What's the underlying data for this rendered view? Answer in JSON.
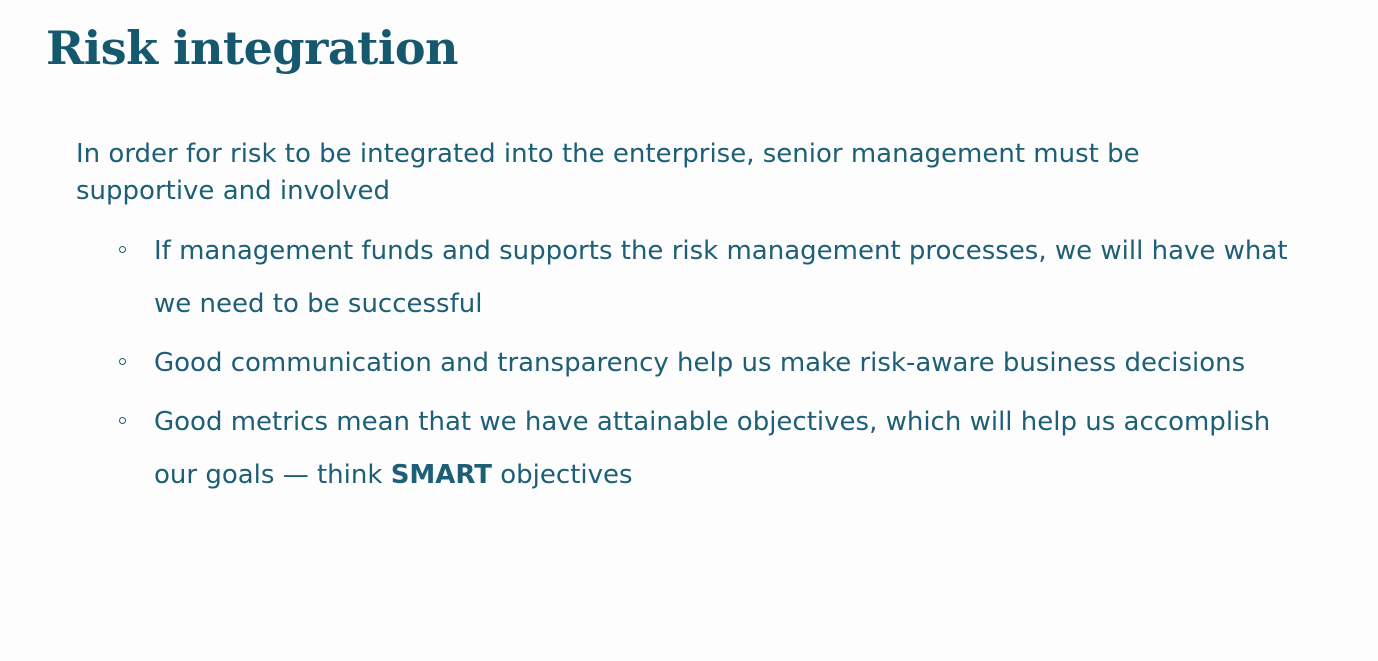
{
  "colors": {
    "title": "#16586e",
    "text": "#1c5f77",
    "background": "#fdfdfd"
  },
  "slide": {
    "title": "Risk integration",
    "intro": "In order for risk to be integrated into the enterprise, senior management must be supportive and involved",
    "bullets": [
      {
        "text": "If management funds and supports the risk management processes, we will have what we need to be successful"
      },
      {
        "text": "Good communication and transparency help us make risk-aware business decisions"
      },
      {
        "text_before": "Good metrics mean that we have attainable objectives, which will help us accomplish our goals — think ",
        "text_bold": "SMART",
        "text_after": " objectives"
      }
    ],
    "bullet_icon": "hollow-circle-bullet-icon"
  }
}
